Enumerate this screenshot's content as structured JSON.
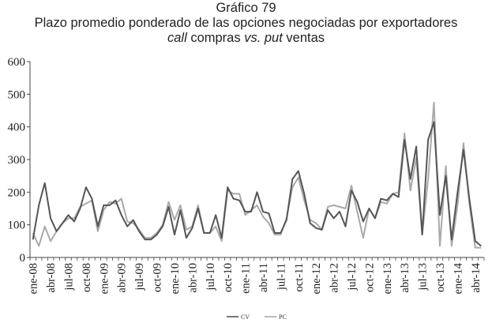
{
  "title": {
    "line1": "Gráfico 79",
    "line2": "Plazo promedio ponderado de las opciones negociadas por exportadores",
    "line3_a": "call",
    "line3_b": " compras ",
    "line3_c": "vs.",
    "line3_d": " ",
    "line3_e": "put",
    "line3_f": " ventas"
  },
  "colors": {
    "cv": "#555555",
    "pc": "#a9a9a9",
    "axis": "#444444"
  },
  "chart_data": {
    "type": "line",
    "ylim": [
      0,
      600
    ],
    "yticks": [
      0,
      100,
      200,
      300,
      400,
      500,
      600
    ],
    "grid": false,
    "legend_position": "bottom-center",
    "x": [
      "ene-08",
      "feb-08",
      "mar-08",
      "abr-08",
      "may-08",
      "jun-08",
      "jul-08",
      "ago-08",
      "sep-08",
      "oct-08",
      "nov-08",
      "dic-08",
      "ene-09",
      "feb-09",
      "mar-09",
      "abr-09",
      "may-09",
      "jun-09",
      "jul-09",
      "ago-09",
      "sep-09",
      "oct-09",
      "nov-09",
      "dic-09",
      "ene-10",
      "feb-10",
      "mar-10",
      "abr-10",
      "may-10",
      "jun-10",
      "jul-10",
      "ago-10",
      "sep-10",
      "oct-10",
      "nov-10",
      "dic-10",
      "ene-11",
      "feb-11",
      "mar-11",
      "abr-11",
      "may-11",
      "jun-11",
      "jul-11",
      "ago-11",
      "sep-11",
      "oct-11",
      "nov-11",
      "dic-11",
      "ene-12",
      "feb-12",
      "mar-12",
      "abr-12",
      "may-12",
      "jun-12",
      "jul-12",
      "ago-12",
      "sep-12",
      "oct-12",
      "nov-12",
      "dic-12",
      "ene-13",
      "feb-13",
      "mar-13",
      "abr-13",
      "may-13",
      "jun-13",
      "jul-13",
      "ago-13",
      "sep-13",
      "oct-13",
      "nov-13",
      "dic-13",
      "ene-14",
      "feb-14",
      "mar-14",
      "abr-14",
      "may-14"
    ],
    "xtick_labels": [
      "ene-08",
      "abr-08",
      "jul-08",
      "oct-08",
      "ene-09",
      "abr-09",
      "jul-09",
      "oct-09",
      "ene-10",
      "abr-10",
      "jul-10",
      "oct-10",
      "ene-11",
      "abr-11",
      "jul-11",
      "oct-11",
      "ene-12",
      "abr-12",
      "jul-12",
      "oct-12",
      "ene-13",
      "abr-13",
      "jul-13",
      "oct-13",
      "ene-14",
      "abr-14"
    ],
    "series": [
      {
        "name": "CV",
        "values": [
          55,
          160,
          228,
          120,
          80,
          105,
          130,
          110,
          150,
          215,
          180,
          95,
          160,
          160,
          175,
          130,
          95,
          115,
          80,
          55,
          55,
          70,
          95,
          155,
          70,
          145,
          60,
          90,
          150,
          75,
          75,
          130,
          60,
          215,
          180,
          175,
          140,
          140,
          200,
          140,
          135,
          75,
          75,
          115,
          240,
          265,
          195,
          105,
          90,
          85,
          145,
          120,
          140,
          95,
          205,
          170,
          110,
          150,
          120,
          180,
          175,
          195,
          185,
          360,
          240,
          340,
          70,
          360,
          415,
          130,
          250,
          55,
          200,
          330,
          180,
          50,
          35
        ],
        "color": "#555555"
      },
      {
        "name": "PC",
        "values": [
          75,
          35,
          95,
          50,
          80,
          105,
          120,
          120,
          155,
          165,
          175,
          80,
          145,
          170,
          165,
          180,
          110,
          105,
          85,
          60,
          60,
          75,
          100,
          170,
          115,
          160,
          85,
          95,
          160,
          75,
          75,
          95,
          50,
          205,
          195,
          195,
          130,
          145,
          160,
          125,
          105,
          70,
          70,
          120,
          215,
          245,
          175,
          115,
          105,
          85,
          155,
          160,
          155,
          150,
          220,
          140,
          60,
          150,
          120,
          170,
          165,
          195,
          200,
          380,
          205,
          305,
          70,
          240,
          475,
          35,
          280,
          35,
          160,
          350,
          165,
          30,
          30
        ],
        "color": "#a9a9a9"
      }
    ]
  }
}
